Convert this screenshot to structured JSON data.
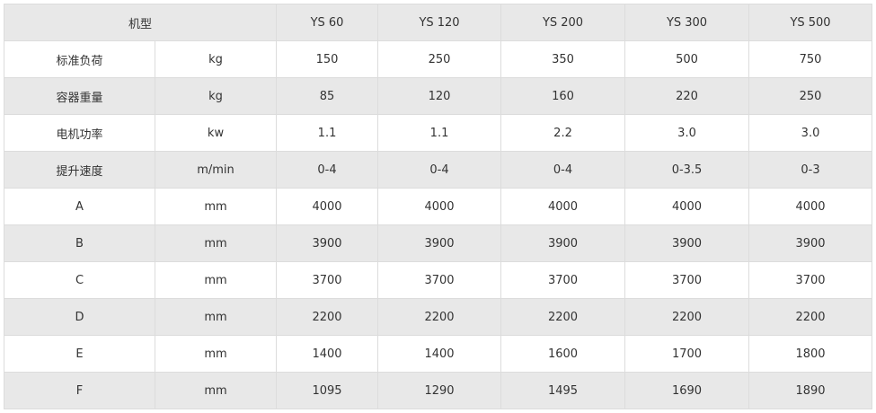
{
  "header": {
    "label": "机型",
    "models": [
      "YS 60",
      "YS 120",
      "YS 200",
      "YS 300",
      "YS 500"
    ]
  },
  "rows": [
    {
      "name": "标准负荷",
      "unit": "kg",
      "values": [
        "150",
        "250",
        "350",
        "500",
        "750"
      ]
    },
    {
      "name": "容器重量",
      "unit": "kg",
      "values": [
        "85",
        "120",
        "160",
        "220",
        "250"
      ]
    },
    {
      "name": "电机功率",
      "unit": "kw",
      "values": [
        "1.1",
        "1.1",
        "2.2",
        "3.0",
        "3.0"
      ]
    },
    {
      "name": "提升速度",
      "unit": "m/min",
      "values": [
        "0-4",
        "0-4",
        "0-4",
        "0-3.5",
        "0-3"
      ]
    },
    {
      "name": "A",
      "unit": "mm",
      "values": [
        "4000",
        "4000",
        "4000",
        "4000",
        "4000"
      ]
    },
    {
      "name": "B",
      "unit": "mm",
      "values": [
        "3900",
        "3900",
        "3900",
        "3900",
        "3900"
      ]
    },
    {
      "name": "C",
      "unit": "mm",
      "values": [
        "3700",
        "3700",
        "3700",
        "3700",
        "3700"
      ]
    },
    {
      "name": "D",
      "unit": "mm",
      "values": [
        "2200",
        "2200",
        "2200",
        "2200",
        "2200"
      ]
    },
    {
      "name": "E",
      "unit": "mm",
      "values": [
        "1400",
        "1400",
        "1600",
        "1700",
        "1800"
      ]
    },
    {
      "name": "F",
      "unit": "mm",
      "values": [
        "1095",
        "1290",
        "1495",
        "1690",
        "1890"
      ]
    }
  ]
}
